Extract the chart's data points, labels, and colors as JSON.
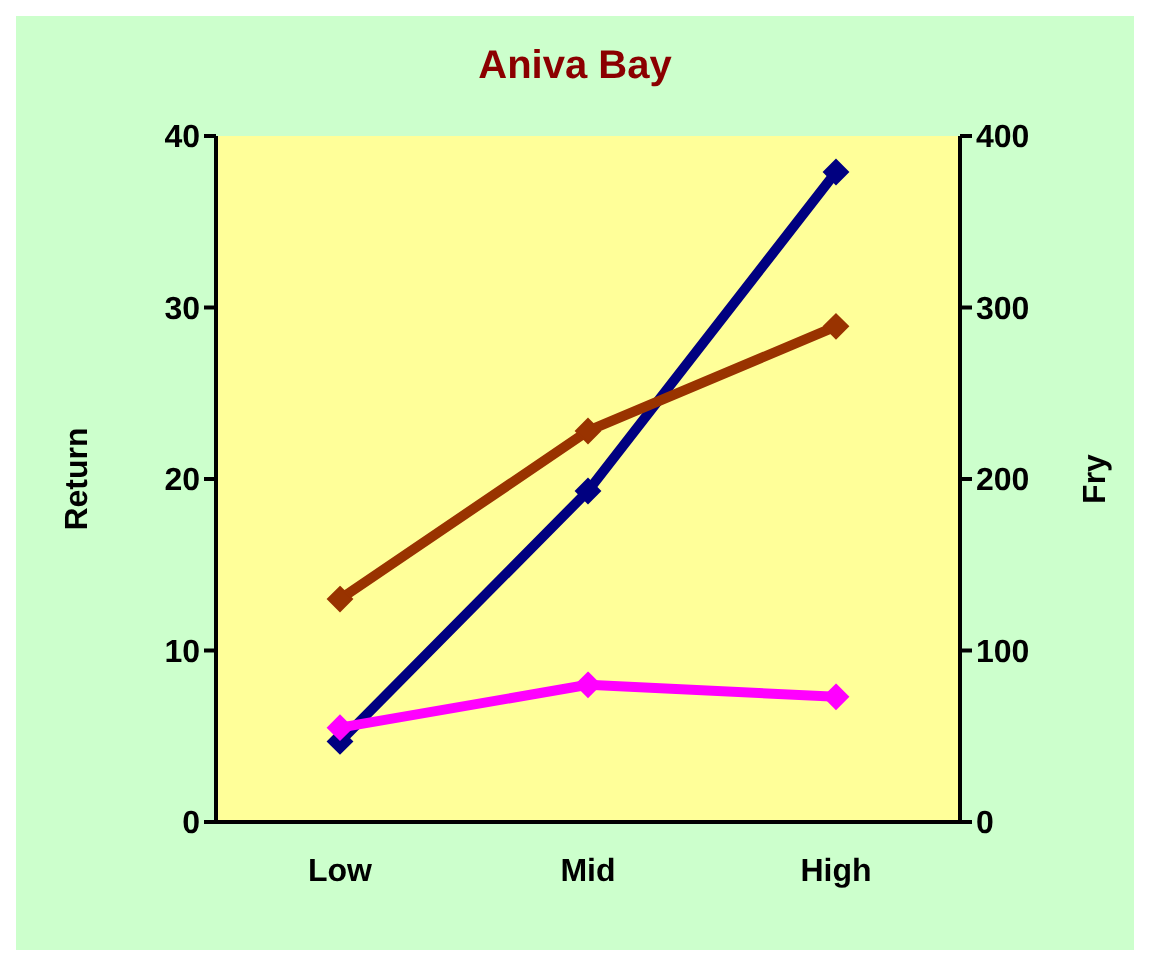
{
  "chart_data": {
    "type": "line",
    "title": "Aniva Bay",
    "ylabel": "Return",
    "y2label": "Fry",
    "categories": [
      "Low",
      "Mid",
      "High"
    ],
    "series": [
      {
        "color": "#000080",
        "values": [
          4.7,
          19.3,
          37.9
        ]
      },
      {
        "color": "#993300",
        "values": [
          13.0,
          22.8,
          28.9
        ]
      },
      {
        "color": "#ff00ff",
        "values": [
          5.5,
          8.0,
          7.3
        ]
      }
    ],
    "ylim": [
      0,
      40
    ],
    "yticks": [
      0,
      10,
      20,
      30,
      40
    ],
    "y2lim": [
      0,
      400
    ],
    "y2ticks": [
      0,
      100,
      200,
      300,
      400
    ],
    "legend": false,
    "marker": "diamond",
    "line_style": "solid"
  }
}
